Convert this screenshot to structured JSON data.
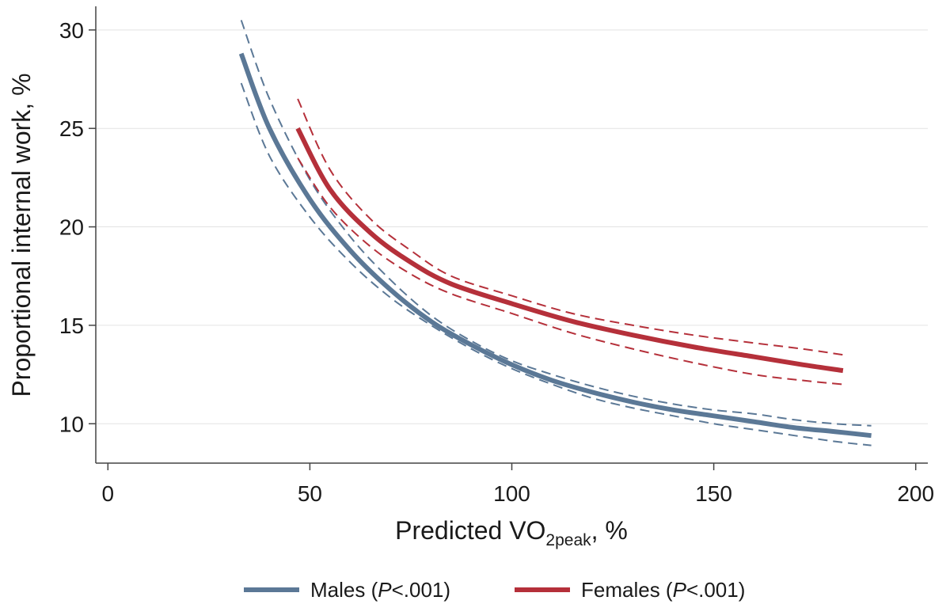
{
  "chart_data": {
    "type": "line",
    "xlabel": {
      "prefix": "Predicted VO",
      "sub": "2peak",
      "suffix": ", %"
    },
    "ylabel": "Proportional internal work, %",
    "xlim": [
      -3,
      203
    ],
    "ylim": [
      8.0,
      31.2
    ],
    "xticks": [
      0,
      50,
      100,
      150,
      200
    ],
    "yticks": [
      10,
      15,
      20,
      25,
      30
    ],
    "grid": "horizontal",
    "legend_position": "bottom",
    "series": [
      {
        "name": "Males",
        "p_label": "P",
        "p_value": "<.001",
        "color": "#5b7896",
        "x": [
          33,
          40,
          50,
          60,
          70,
          80,
          90,
          100,
          110,
          120,
          130,
          140,
          150,
          160,
          170,
          180,
          189
        ],
        "y": [
          28.8,
          25.0,
          21.4,
          18.8,
          16.8,
          15.2,
          14.0,
          13.0,
          12.2,
          11.6,
          11.1,
          10.7,
          10.4,
          10.1,
          9.8,
          9.6,
          9.4
        ],
        "ci_lower": [
          27.3,
          23.6,
          20.5,
          18.2,
          16.4,
          15.0,
          13.8,
          12.8,
          12.0,
          11.3,
          10.8,
          10.4,
          10.0,
          9.7,
          9.4,
          9.1,
          8.9
        ],
        "ci_upper": [
          30.5,
          26.5,
          22.4,
          19.5,
          17.3,
          15.5,
          14.2,
          13.2,
          12.5,
          11.9,
          11.4,
          11.0,
          10.7,
          10.5,
          10.2,
          10.0,
          9.9
        ]
      },
      {
        "name": "Females",
        "p_label": "P",
        "p_value": "<.001",
        "color": "#b5303a",
        "x": [
          47,
          55,
          65,
          75,
          85,
          100,
          115,
          130,
          145,
          160,
          172,
          182
        ],
        "y": [
          25.0,
          21.9,
          19.7,
          18.2,
          17.1,
          16.1,
          15.2,
          14.5,
          13.9,
          13.4,
          13.0,
          12.7
        ],
        "ci_lower": [
          23.5,
          21.0,
          19.0,
          17.6,
          16.6,
          15.6,
          14.6,
          13.8,
          13.1,
          12.5,
          12.2,
          12.0
        ],
        "ci_upper": [
          26.5,
          22.9,
          20.4,
          18.8,
          17.5,
          16.5,
          15.6,
          15.0,
          14.5,
          14.1,
          13.8,
          13.5
        ]
      }
    ]
  }
}
